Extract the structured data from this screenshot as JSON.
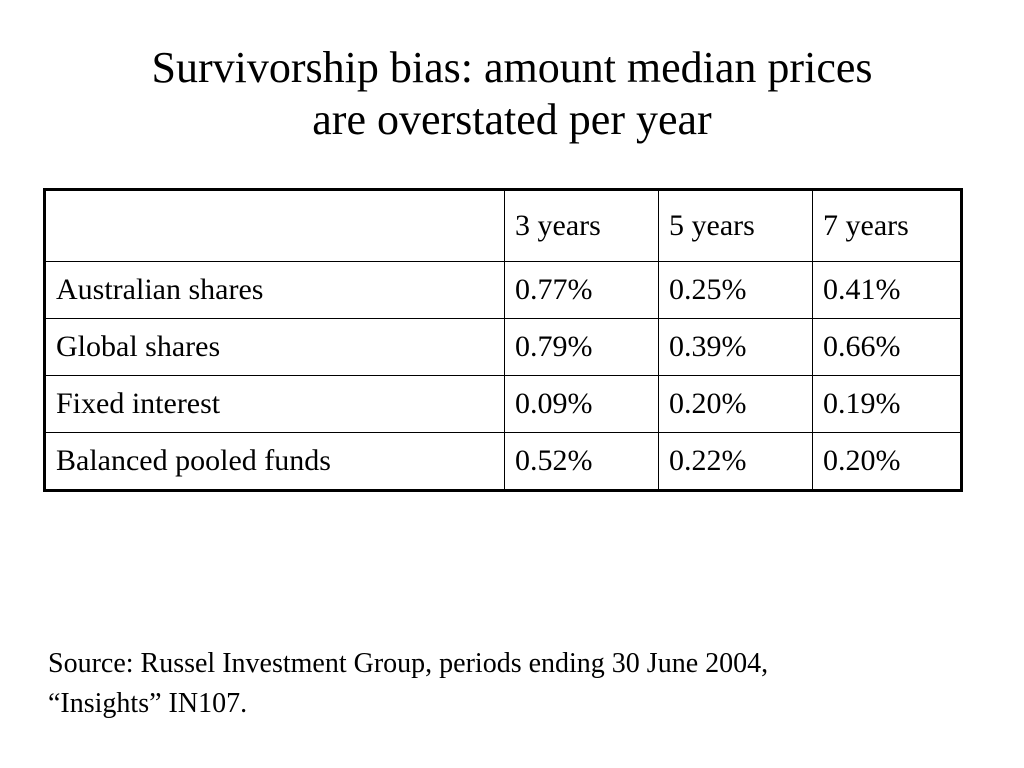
{
  "title": {
    "line1": "Survivorship bias: amount median prices",
    "line2": "are overstated per year"
  },
  "table": {
    "headers": [
      "",
      "3 years",
      "5 years",
      "7 years"
    ],
    "rows": [
      {
        "label": "Australian shares",
        "values": [
          "0.77%",
          "0.25%",
          "0.41%"
        ]
      },
      {
        "label": "Global shares",
        "values": [
          "0.79%",
          "0.39%",
          "0.66%"
        ]
      },
      {
        "label": "Fixed interest",
        "values": [
          "0.09%",
          "0.20%",
          "0.19%"
        ]
      },
      {
        "label": "Balanced pooled funds",
        "values": [
          "0.52%",
          "0.22%",
          "0.20%"
        ]
      }
    ]
  },
  "source": {
    "line1": "Source: Russel Investment Group, periods ending 30 June 2004,",
    "line2": "“Insights” IN107."
  }
}
